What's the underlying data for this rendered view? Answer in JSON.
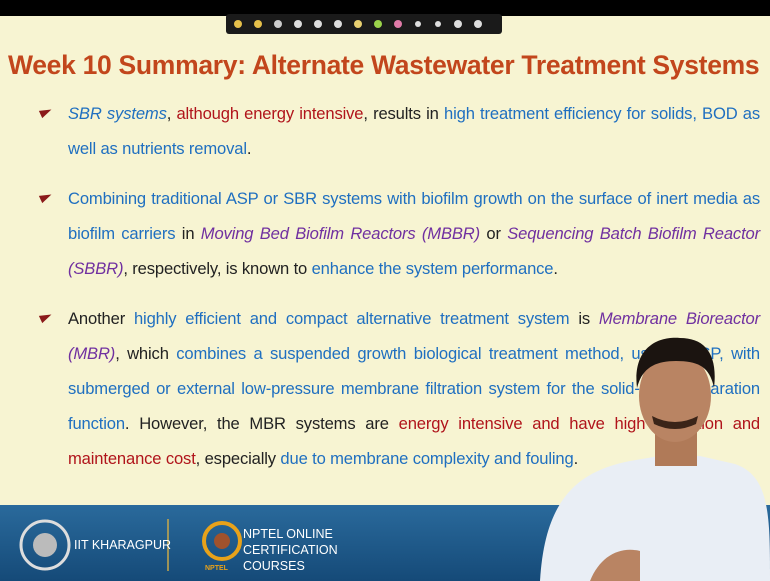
{
  "slide": {
    "title": "Week 10 Summary: Alternate Wastewater Treatment Systems",
    "bullets": [
      {
        "segments": [
          {
            "text": "SBR systems",
            "color": "#1f6fc0",
            "italic": true
          },
          {
            "text": ", ",
            "color": "#222222"
          },
          {
            "text": "although energy intensive",
            "color": "#b0141b"
          },
          {
            "text": ", results in ",
            "color": "#222222"
          },
          {
            "text": "high treatment efficiency for solids, BOD as well as nutrients removal",
            "color": "#1f6fc0"
          },
          {
            "text": ".",
            "color": "#222222"
          }
        ]
      },
      {
        "segments": [
          {
            "text": "Combining traditional ASP or SBR systems with biofilm growth on the surface of inert media as biofilm carriers",
            "color": "#1f6fc0"
          },
          {
            "text": " in ",
            "color": "#222222"
          },
          {
            "text": "Moving Bed Biofilm Reactors (MBBR)",
            "color": "#7030a0",
            "italic": true
          },
          {
            "text": " or ",
            "color": "#222222"
          },
          {
            "text": "Sequencing Batch Biofilm Reactor (SBBR)",
            "color": "#7030a0",
            "italic": true
          },
          {
            "text": ", respectively, is known to ",
            "color": "#222222"
          },
          {
            "text": "enhance the system performance",
            "color": "#1f6fc0"
          },
          {
            "text": ".",
            "color": "#222222"
          }
        ]
      },
      {
        "segments": [
          {
            "text": "Another ",
            "color": "#222222"
          },
          {
            "text": "highly efficient and compact alternative treatment system",
            "color": "#1f6fc0"
          },
          {
            "text": " is ",
            "color": "#222222"
          },
          {
            "text": "Membrane Bioreactor (MBR)",
            "color": "#7030a0",
            "italic": true
          },
          {
            "text": ", which ",
            "color": "#222222"
          },
          {
            "text": "combines a suspended growth biological treatment method, usually ASP, with submerged or external low-pressure membrane filtration system for the solid-liquid separation function",
            "color": "#1f6fc0"
          },
          {
            "text": ". However, the MBR systems are ",
            "color": "#222222"
          },
          {
            "text": "energy intensive and have high operation and maintenance cost",
            "color": "#b0141b"
          },
          {
            "text": ", especially ",
            "color": "#222222"
          },
          {
            "text": "due to membrane complexity and fouling",
            "color": "#1f6fc0"
          },
          {
            "text": ".",
            "color": "#222222"
          }
        ]
      }
    ]
  },
  "footer": {
    "institute": "IIT KHARAGPUR",
    "nptel": "NPTEL ONLINE CERTIFICATION COURSES",
    "nptel_logo": "NPTEL"
  }
}
